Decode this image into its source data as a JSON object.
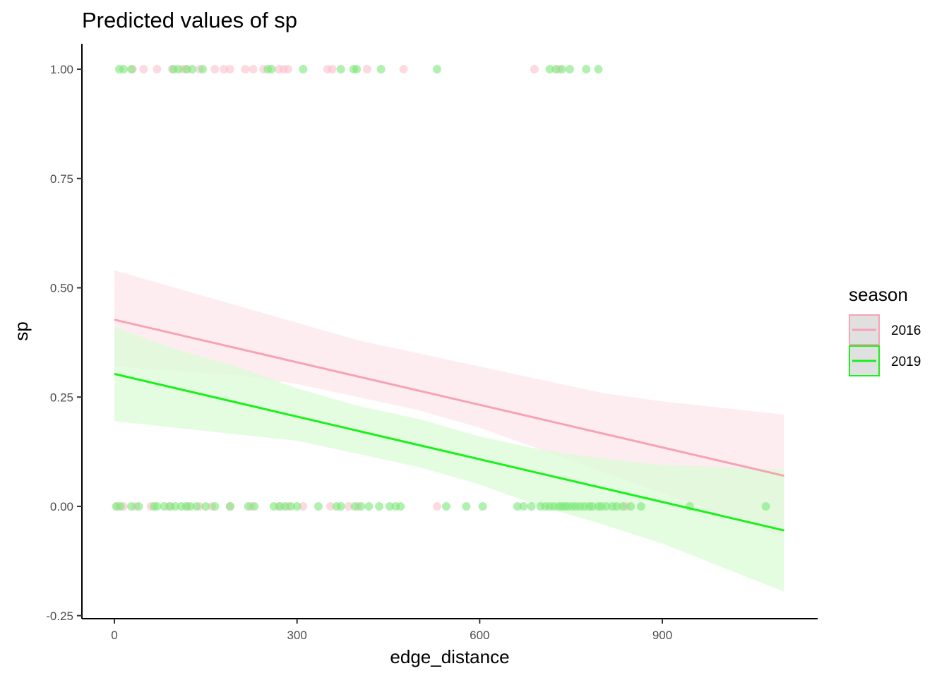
{
  "chart_data": {
    "type": "scatter",
    "title": "Predicted values of sp",
    "xlabel": "edge_distance",
    "ylabel": "sp",
    "xlim": [
      -18,
      1120
    ],
    "ylim": [
      -0.25,
      1.05
    ],
    "x_ticks": [
      0,
      300,
      600,
      900
    ],
    "x_tick_labels": [
      "0",
      "300",
      "600",
      "900"
    ],
    "y_ticks": [
      -0.25,
      0.0,
      0.25,
      0.5,
      0.75,
      1.0
    ],
    "y_tick_labels": [
      "-0.25",
      "0.00",
      "0.25",
      "0.50",
      "0.75",
      "1.00"
    ],
    "grid": false,
    "legend": {
      "title": "season",
      "position": "right"
    },
    "series": [
      {
        "name": "2016",
        "color": "#f5a3b5",
        "fill": "#fde6ea",
        "point_color": "#fcc0cc",
        "line": {
          "x": [
            0,
            1100
          ],
          "y": [
            0.427,
            0.07
          ]
        },
        "band": {
          "x": [
            0,
            100,
            200,
            300,
            400,
            500,
            600,
            700,
            800,
            900,
            1000,
            1100
          ],
          "lower": [
            0.32,
            0.31,
            0.3,
            0.28,
            0.25,
            0.22,
            0.18,
            0.13,
            0.08,
            0.03,
            -0.02,
            -0.07
          ],
          "upper": [
            0.54,
            0.5,
            0.46,
            0.42,
            0.38,
            0.35,
            0.32,
            0.29,
            0.26,
            0.24,
            0.225,
            0.21
          ]
        },
        "points_at_1": [
          30,
          48,
          70,
          95,
          112,
          120,
          140,
          165,
          180,
          190,
          215,
          228,
          245,
          270,
          278,
          285,
          350,
          358,
          415,
          475,
          690,
          730
        ],
        "points_at_0": [
          5,
          15,
          35,
          60,
          90,
          120,
          140,
          160,
          190,
          225,
          270,
          285,
          310,
          355,
          385,
          400,
          530,
          840
        ]
      },
      {
        "name": "2019",
        "color": "#1af01a",
        "fill": "#d8fcd4",
        "point_color": "#7de87a",
        "line": {
          "x": [
            0,
            1100
          ],
          "y": [
            0.303,
            -0.055
          ]
        },
        "band": {
          "x": [
            0,
            100,
            200,
            300,
            400,
            500,
            600,
            700,
            800,
            900,
            1000,
            1100
          ],
          "lower": [
            0.195,
            0.18,
            0.165,
            0.15,
            0.12,
            0.09,
            0.05,
            0.0,
            -0.04,
            -0.085,
            -0.14,
            -0.195
          ],
          "upper": [
            0.41,
            0.36,
            0.32,
            0.27,
            0.23,
            0.2,
            0.16,
            0.13,
            0.11,
            0.095,
            0.09,
            0.085
          ]
        },
        "points_at_1": [
          8,
          15,
          28,
          97,
          105,
          118,
          128,
          145,
          252,
          258,
          310,
          372,
          393,
          398,
          438,
          530,
          715,
          725,
          735,
          748,
          775,
          795
        ],
        "points_at_0": [
          3,
          10,
          28,
          40,
          65,
          70,
          82,
          92,
          100,
          110,
          118,
          125,
          135,
          150,
          165,
          190,
          220,
          230,
          262,
          272,
          280,
          290,
          300,
          335,
          365,
          372,
          395,
          405,
          418,
          435,
          452,
          462,
          470,
          545,
          578,
          605,
          662,
          672,
          685,
          700,
          708,
          715,
          722,
          730,
          735,
          740,
          745,
          752,
          758,
          765,
          772,
          780,
          785,
          795,
          800,
          808,
          818,
          825,
          835,
          848,
          865,
          945,
          1070
        ]
      }
    ]
  }
}
